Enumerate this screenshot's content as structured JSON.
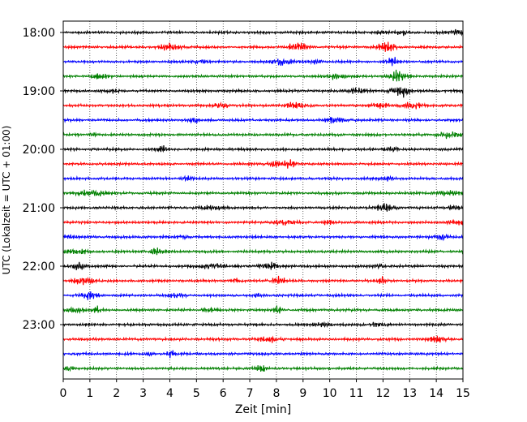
{
  "chart_data": {
    "type": "line",
    "title": "",
    "xlabel": "Zeit  [min]",
    "ylabel": "UTC (Lokalzeit = UTC + 01:00)",
    "xlim": [
      0,
      15
    ],
    "x_ticks": [
      "0",
      "1",
      "2",
      "3",
      "4",
      "5",
      "6",
      "7",
      "8",
      "9",
      "10",
      "11",
      "12",
      "13",
      "14",
      "15"
    ],
    "y_ticks": [
      "18:00",
      "19:00",
      "20:00",
      "21:00",
      "22:00",
      "23:00"
    ],
    "grid_x": true,
    "grid_style": "dotted",
    "trace_interval_min": 15,
    "trace_colors": [
      "#000000",
      "#ff0000",
      "#0000ff",
      "#008000"
    ],
    "traces": [
      {
        "start": "18:00",
        "color": "#000000"
      },
      {
        "start": "18:15",
        "color": "#ff0000"
      },
      {
        "start": "18:30",
        "color": "#0000ff"
      },
      {
        "start": "18:45",
        "color": "#008000"
      },
      {
        "start": "19:00",
        "color": "#000000"
      },
      {
        "start": "19:15",
        "color": "#ff0000"
      },
      {
        "start": "19:30",
        "color": "#0000ff"
      },
      {
        "start": "19:45",
        "color": "#008000"
      },
      {
        "start": "20:00",
        "color": "#000000"
      },
      {
        "start": "20:15",
        "color": "#ff0000"
      },
      {
        "start": "20:30",
        "color": "#0000ff"
      },
      {
        "start": "20:45",
        "color": "#008000"
      },
      {
        "start": "21:00",
        "color": "#000000"
      },
      {
        "start": "21:15",
        "color": "#ff0000"
      },
      {
        "start": "21:30",
        "color": "#0000ff"
      },
      {
        "start": "21:45",
        "color": "#008000"
      },
      {
        "start": "22:00",
        "color": "#000000"
      },
      {
        "start": "22:15",
        "color": "#ff0000"
      },
      {
        "start": "22:30",
        "color": "#0000ff"
      },
      {
        "start": "22:45",
        "color": "#008000"
      },
      {
        "start": "23:00",
        "color": "#000000"
      },
      {
        "start": "23:15",
        "color": "#ff0000"
      },
      {
        "start": "23:30",
        "color": "#0000ff"
      },
      {
        "start": "23:45",
        "color": "#008000"
      }
    ]
  }
}
